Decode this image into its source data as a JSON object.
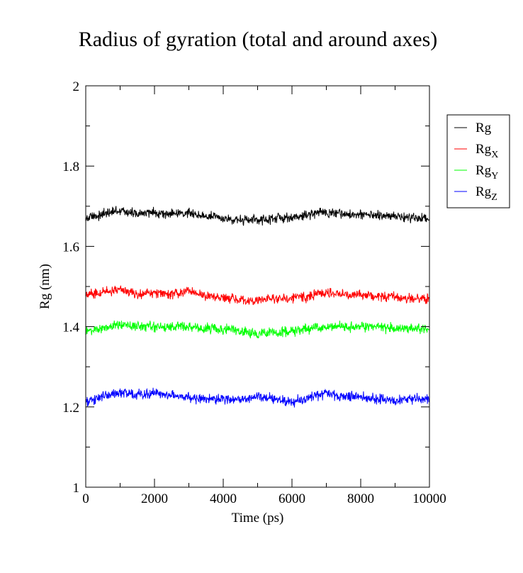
{
  "chart_data": {
    "type": "line",
    "title": "Radius of gyration (total and around axes)",
    "xlabel": "Time (ps)",
    "ylabel": "Rg (nm)",
    "xlim": [
      0,
      10000
    ],
    "ylim": [
      1,
      2
    ],
    "x_ticks": [
      0,
      2000,
      4000,
      6000,
      8000,
      10000
    ],
    "x_tick_labels": [
      "0",
      "2000",
      "4000",
      "6000",
      "8000",
      "10000"
    ],
    "y_ticks": [
      1,
      1.2,
      1.4,
      1.6,
      1.8,
      2
    ],
    "y_tick_labels": [
      "1",
      "1.2",
      "1.4",
      "1.6",
      "1.8",
      "2"
    ],
    "grid": false,
    "legend_position": "right, outside plot, top",
    "series": [
      {
        "name": "Rg",
        "name_base": "Rg",
        "name_sub": "",
        "color": "#000000",
        "x": [
          0,
          500,
          1000,
          1500,
          2000,
          2500,
          3000,
          3500,
          4000,
          4500,
          5000,
          5500,
          6000,
          6500,
          7000,
          7500,
          8000,
          8500,
          9000,
          9500,
          10000
        ],
        "values": [
          1.67,
          1.68,
          1.69,
          1.68,
          1.685,
          1.68,
          1.685,
          1.675,
          1.67,
          1.665,
          1.665,
          1.67,
          1.67,
          1.68,
          1.685,
          1.68,
          1.68,
          1.675,
          1.675,
          1.67,
          1.67
        ]
      },
      {
        "name": "RgX",
        "name_base": "Rg",
        "name_sub": "X",
        "color": "#ff0000",
        "x": [
          0,
          500,
          1000,
          1500,
          2000,
          2500,
          3000,
          3500,
          4000,
          4500,
          5000,
          5500,
          6000,
          6500,
          7000,
          7500,
          8000,
          8500,
          9000,
          9500,
          10000
        ],
        "values": [
          1.48,
          1.485,
          1.495,
          1.48,
          1.485,
          1.48,
          1.49,
          1.475,
          1.47,
          1.465,
          1.465,
          1.47,
          1.47,
          1.475,
          1.485,
          1.48,
          1.48,
          1.475,
          1.475,
          1.47,
          1.47
        ]
      },
      {
        "name": "RgY",
        "name_base": "Rg",
        "name_sub": "Y",
        "color": "#00ff00",
        "x": [
          0,
          500,
          1000,
          1500,
          2000,
          2500,
          3000,
          3500,
          4000,
          4500,
          5000,
          5500,
          6000,
          6500,
          7000,
          7500,
          8000,
          8500,
          9000,
          9500,
          10000
        ],
        "values": [
          1.39,
          1.395,
          1.405,
          1.4,
          1.4,
          1.4,
          1.4,
          1.395,
          1.395,
          1.39,
          1.38,
          1.385,
          1.39,
          1.395,
          1.4,
          1.4,
          1.4,
          1.4,
          1.395,
          1.395,
          1.395
        ]
      },
      {
        "name": "RgZ",
        "name_base": "Rg",
        "name_sub": "Z",
        "color": "#0000ff",
        "x": [
          0,
          500,
          1000,
          1500,
          2000,
          2500,
          3000,
          3500,
          4000,
          4500,
          5000,
          5500,
          6000,
          6500,
          7000,
          7500,
          8000,
          8500,
          9000,
          9500,
          10000
        ],
        "values": [
          1.21,
          1.225,
          1.235,
          1.23,
          1.235,
          1.23,
          1.225,
          1.22,
          1.22,
          1.215,
          1.225,
          1.22,
          1.21,
          1.225,
          1.235,
          1.225,
          1.225,
          1.22,
          1.215,
          1.22,
          1.22
        ]
      }
    ]
  }
}
